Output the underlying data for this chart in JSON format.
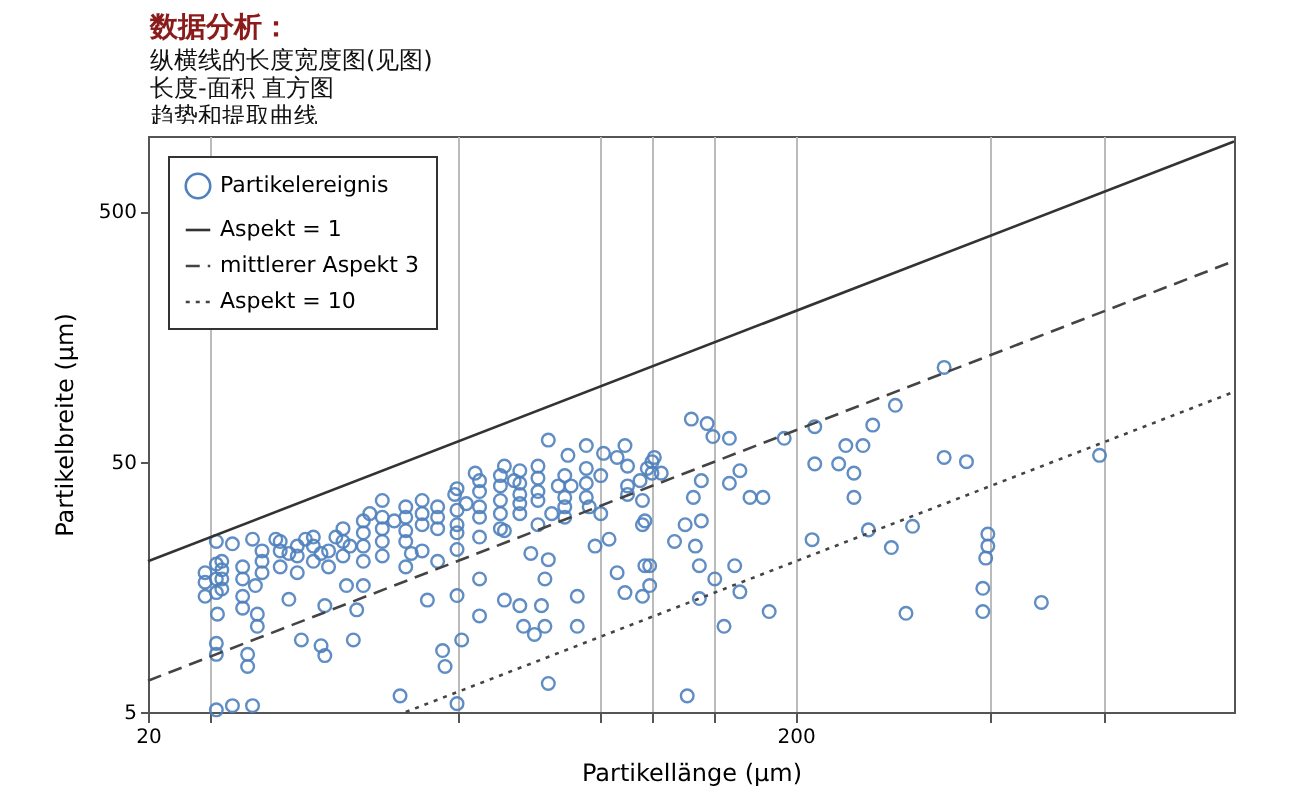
{
  "chart_data": {
    "type": "scatter",
    "title": "数据分析：",
    "annotations": [
      "纵横线的长度宽度图(见图)",
      "长度-面积 直方图",
      "趋势和提取曲线"
    ],
    "xlabel": "Partikellänge (µm)",
    "ylabel": "Partikelbreite (µm)",
    "log": "xy",
    "grid": "x",
    "legend": "top left",
    "xlim": [
      20,
      950
    ],
    "ylim": [
      5,
      1000
    ],
    "xticks": [
      20,
      {
        "value": 25,
        "label": null
      },
      {
        "value": 60,
        "label": null
      },
      {
        "value": 100,
        "label": null
      },
      {
        "value": 120,
        "label": null
      },
      {
        "value": 150,
        "label": null
      },
      200,
      {
        "value": 400,
        "label": null
      },
      {
        "value": 600,
        "label": null
      }
    ],
    "yticks": [
      5,
      50,
      500
    ],
    "series": [
      {
        "name": "Partikelereignis",
        "marker": "circle",
        "color": "#4f81bd",
        "x": [
          138,
          146,
          149,
          158,
          192,
          214,
          339,
          285,
          263,
          239,
          254,
          214,
          233,
          246,
          246,
          339,
          367,
          589,
          170,
          178,
          158,
          164,
          143,
          139,
          135,
          143,
          130,
          140,
          142,
          161,
          119,
          150,
          164,
          142,
          182,
          155,
          136,
          212,
          259,
          281,
          303,
          296,
          396,
          396,
          393,
          389,
          389,
          479,
          115,
          118,
          121,
          124,
          116,
          116,
          119,
          116,
          25.5,
          27,
          25.5,
          25.5,
          25.5,
          25.6,
          25.5,
          25.5,
          25.5,
          27,
          29,
          28.5,
          28.5,
          29.3,
          29.5,
          29.5,
          29,
          31.5,
          33,
          33,
          34.5,
          37,
          37.5,
          37.5,
          35,
          37,
          39,
          41,
          40.5,
          42,
          41.5,
          43,
          44,
          46,
          48,
          50,
          49,
          51,
          54,
          57,
          57.5,
          61,
          60,
          60,
          59.5,
          62,
          64,
          60,
          65,
          65,
          71,
          71,
          73.5,
          75,
          71,
          75,
          76,
          79,
          81,
          82,
          78,
          80,
          83,
          86,
          90,
          84,
          83,
          82,
          92,
          92,
          83,
          89,
          95,
          101,
          109,
          106,
          96,
          98,
          110,
          109,
          117,
          106,
          103,
          117,
          24.5,
          24.5,
          24.5,
          26,
          26,
          26,
          26,
          28,
          28,
          28,
          28,
          30,
          30,
          30,
          32,
          32,
          32,
          34,
          34,
          34,
          36,
          36,
          36,
          38,
          38,
          40,
          40,
          40,
          43,
          43,
          43,
          43,
          46,
          46,
          46,
          46,
          50,
          50,
          50,
          50,
          53,
          53,
          53,
          53,
          56,
          56,
          56,
          56,
          60,
          60,
          60,
          60,
          65,
          65,
          65,
          65,
          65,
          70,
          70,
          70,
          70,
          70,
          75,
          75,
          75,
          75,
          80,
          80,
          80,
          80,
          88,
          88,
          88,
          88,
          95,
          95,
          95,
          100,
          100,
          110,
          110,
          120,
          120
        ],
        "values": [
          74,
          71,
          63,
          62,
          62,
          69,
          119,
          84,
          70,
          58,
          58,
          49,
          49,
          45,
          36,
          52,
          50,
          53,
          36,
          36,
          41,
          46,
          42,
          36,
          28,
          29,
          24,
          23,
          19.2,
          19.2,
          19.2,
          17,
          15.1,
          14.2,
          12.6,
          11,
          5.8,
          24.4,
          26.7,
          22.7,
          27.6,
          12.4,
          25.7,
          23,
          20.6,
          15.6,
          12.6,
          13.7,
          42,
          47,
          52,
          45,
          35,
          28,
          16,
          14.5,
          24,
          23.5,
          19.5,
          17,
          15,
          12.3,
          9.4,
          8.5,
          5.1,
          5.3,
          5.3,
          8.5,
          7.6,
          16,
          12.3,
          11,
          24.5,
          24.5,
          21.5,
          14.1,
          9.7,
          9.2,
          8.4,
          13.3,
          24.5,
          21.5,
          25,
          23,
          16,
          12.8,
          9.7,
          16,
          31,
          35,
          29,
          26.5,
          5.8,
          21.5,
          14,
          8.8,
          7.6,
          9.7,
          14.6,
          22.3,
          37,
          34,
          45,
          5.4,
          17,
          12.1,
          14,
          48,
          42,
          31,
          26.5,
          13.3,
          11,
          10.2,
          13.3,
          17,
          21.5,
          48,
          61,
          40,
          40,
          31,
          20.3,
          11,
          14.5,
          11,
          6.5,
          53,
          58,
          54,
          58,
          52,
          33,
          23,
          37,
          15,
          19.2,
          18,
          24.5,
          29,
          18,
          16.5,
          14.5,
          17,
          15.5,
          18.5,
          20,
          17,
          19,
          14.5,
          13,
          20,
          18,
          22,
          22,
          19,
          24,
          21,
          23,
          18,
          23,
          25,
          20,
          22,
          19,
          24,
          27,
          21,
          26,
          23,
          20,
          29,
          27,
          24,
          30,
          21,
          30,
          33,
          24,
          19,
          31,
          28,
          35,
          22,
          30,
          33,
          27,
          20,
          32,
          28,
          26,
          39,
          38,
          33,
          30,
          42,
          25,
          40,
          35,
          31,
          44,
          27,
          37,
          41,
          34,
          46,
          43,
          38,
          35,
          28,
          44,
          36,
          33,
          30,
          41,
          36,
          47,
          44,
          31,
          48,
          40,
          45,
          50
        ]
      },
      {
        "name": "Aspekt = 1",
        "type": "line",
        "line_style": "solid",
        "color": "#333333",
        "x": [
          20,
          950
        ],
        "values": [
          20,
          950
        ]
      },
      {
        "name": "mittlerer Aspekt 3",
        "type": "line",
        "line_style": "dashed",
        "color": "#444444",
        "x": [
          20,
          950
        ],
        "values": [
          6.67,
          316.7
        ]
      },
      {
        "name": "Aspekt = 10",
        "type": "line",
        "line_style": "dotted",
        "color": "#444444",
        "x": [
          50,
          950
        ],
        "values": [
          5,
          95
        ]
      }
    ]
  }
}
